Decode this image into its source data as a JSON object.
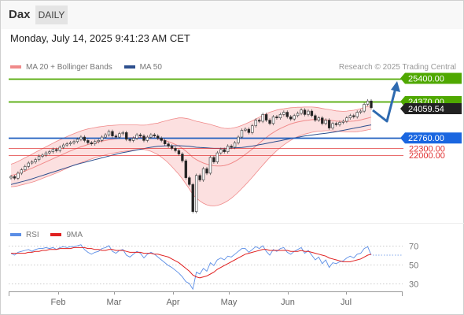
{
  "header": {
    "symbol": "Dax",
    "period_button": "DAILY"
  },
  "datetime": "Monday, July 14, 2025 9:41:23 AM CET",
  "legend": {
    "bollinger_label": "MA 20 + Bollinger Bands",
    "ma50_label": "MA 50",
    "credit": "Research © 2025 Trading Central"
  },
  "rsi_legend": {
    "rsi_label": "RSI",
    "ma_label": "9MA"
  },
  "colors": {
    "resistance": "#4fa800",
    "support": "#1f5fbf",
    "minor_support": "#e03030",
    "bollinger": "#f08a8a",
    "bollinger_fill": "#fbd5d5",
    "ma50": "#2d4f8e",
    "rsi": "#5b8ee6",
    "rsi_ma": "#e02020",
    "arrow": "#2e6ab0"
  },
  "chart_data": [
    {
      "type": "candlestick",
      "x_labels": [
        "Feb",
        "Mar",
        "Apr",
        "May",
        "Jun",
        "Jul"
      ],
      "ylim": [
        19000,
        26500
      ],
      "levels": [
        {
          "label": "25400.00",
          "value": 25400,
          "kind": "resistance"
        },
        {
          "label": "24370.00",
          "value": 24370,
          "kind": "resistance"
        },
        {
          "label": "24059.54",
          "value": 24059.54,
          "kind": "last"
        },
        {
          "label": "22760.00",
          "value": 22760,
          "kind": "pivot"
        },
        {
          "label": "22300.00",
          "value": 22300,
          "kind": "support"
        },
        {
          "label": "22000.00",
          "value": 22000,
          "kind": "support"
        }
      ],
      "close": [
        21050,
        20980,
        21200,
        21350,
        21500,
        21650,
        21700,
        21800,
        21950,
        22000,
        22100,
        22150,
        22250,
        22200,
        22350,
        22450,
        22500,
        22550,
        22600,
        22700,
        22800,
        22650,
        22550,
        22500,
        22600,
        22650,
        22800,
        22900,
        23050,
        22850,
        22800,
        22950,
        23000,
        22700,
        22650,
        22750,
        22900,
        22850,
        22650,
        22800,
        22900,
        22850,
        22750,
        22650,
        22500,
        22400,
        22300,
        22200,
        22050,
        21750,
        21000,
        20700,
        19500,
        21100,
        20900,
        21400,
        21200,
        21900,
        21700,
        22100,
        22250,
        22150,
        22400,
        22350,
        22550,
        22800,
        23100,
        23150,
        23000,
        23300,
        23550,
        23500,
        23800,
        23550,
        23400,
        23700,
        23650,
        23800,
        23900,
        23700,
        23600,
        23750,
        23850,
        24000,
        23800,
        23950,
        23750,
        23550,
        23650,
        23400,
        23550,
        23200,
        23400,
        23350,
        23450,
        23500,
        23650,
        23750,
        23700,
        23900,
        23950,
        24250,
        24400,
        24100
      ],
      "ma20": [
        21100,
        21130,
        21180,
        21240,
        21300,
        21360,
        21420,
        21490,
        21560,
        21630,
        21700,
        21770,
        21840,
        21910,
        21980,
        22050,
        22120,
        22190,
        22250,
        22310,
        22370,
        22420,
        22470,
        22510,
        22550,
        22590,
        22620,
        22650,
        22680,
        22700,
        22720,
        22740,
        22750,
        22760,
        22770,
        22780,
        22790,
        22790,
        22790,
        22780,
        22770,
        22750,
        22720,
        22690,
        22650,
        22600,
        22540,
        22470,
        22400,
        22300,
        22180,
        22050,
        21900,
        21800,
        21720,
        21650,
        21600,
        21560,
        21530,
        21520,
        21520,
        21540,
        21580,
        21640,
        21720,
        21810,
        21920,
        22030,
        22150,
        22270,
        22400,
        22530,
        22660,
        22780,
        22900,
        23000,
        23100,
        23180,
        23250,
        23320,
        23380,
        23430,
        23470,
        23500,
        23530,
        23550,
        23570,
        23580,
        23580,
        23570,
        23560,
        23550,
        23530,
        23510,
        23500,
        23490,
        23490,
        23500,
        23510,
        23530,
        23560,
        23600,
        23640,
        23680
      ],
      "ma50": [
        20700,
        20740,
        20780,
        20820,
        20860,
        20900,
        20950,
        21000,
        21050,
        21100,
        21150,
        21200,
        21250,
        21300,
        21350,
        21400,
        21450,
        21500,
        21550,
        21600,
        21640,
        21680,
        21720,
        21760,
        21800,
        21840,
        21880,
        21920,
        21960,
        22000,
        22040,
        22080,
        22110,
        22140,
        22170,
        22200,
        22230,
        22260,
        22290,
        22320,
        22350,
        22370,
        22390,
        22400,
        22410,
        22420,
        22420,
        22420,
        22420,
        22410,
        22400,
        22390,
        22370,
        22350,
        22340,
        22330,
        22320,
        22310,
        22300,
        22300,
        22300,
        22300,
        22300,
        22310,
        22320,
        22330,
        22340,
        22360,
        22380,
        22400,
        22430,
        22460,
        22490,
        22520,
        22550,
        22580,
        22610,
        22640,
        22670,
        22700,
        22730,
        22760,
        22790,
        22820,
        22850,
        22870,
        22890,
        22910,
        22930,
        22950,
        22970,
        22990,
        23010,
        23040,
        23070,
        23100,
        23130,
        23160,
        23190,
        23220,
        23250,
        23280,
        23310,
        23340
      ],
      "bb_width": [
        500,
        520,
        540,
        560,
        580,
        600,
        620,
        640,
        650,
        660,
        670,
        680,
        690,
        700,
        700,
        700,
        700,
        700,
        700,
        700,
        700,
        700,
        690,
        680,
        670,
        660,
        650,
        640,
        630,
        620,
        610,
        600,
        590,
        580,
        570,
        560,
        550,
        540,
        540,
        560,
        600,
        650,
        700,
        780,
        860,
        950,
        1050,
        1150,
        1250,
        1350,
        1450,
        1550,
        1650,
        1700,
        1750,
        1780,
        1800,
        1800,
        1780,
        1750,
        1700,
        1650,
        1600,
        1550,
        1500,
        1450,
        1400,
        1350,
        1300,
        1250,
        1200,
        1150,
        1100,
        1050,
        1000,
        950,
        900,
        850,
        800,
        760,
        720,
        680,
        650,
        620,
        600,
        580,
        560,
        540,
        520,
        500,
        480,
        470,
        460,
        450,
        450,
        450,
        460,
        470,
        480,
        490,
        500,
        510,
        520,
        530
      ]
    },
    {
      "type": "line",
      "name": "RSI panel",
      "y_ticks": [
        30,
        50,
        70
      ],
      "ylim": [
        20,
        80
      ],
      "rsi": [
        62,
        60,
        63,
        64,
        65,
        66,
        64,
        66,
        67,
        67,
        68,
        67,
        68,
        66,
        68,
        69,
        68,
        69,
        69,
        70,
        71,
        66,
        63,
        61,
        63,
        64,
        67,
        68,
        70,
        64,
        62,
        65,
        66,
        60,
        58,
        61,
        64,
        62,
        57,
        61,
        63,
        61,
        58,
        55,
        52,
        49,
        47,
        44,
        41,
        37,
        32,
        30,
        24,
        42,
        40,
        46,
        43,
        52,
        49,
        55,
        57,
        55,
        59,
        58,
        61,
        64,
        67,
        67,
        63,
        66,
        69,
        67,
        70,
        64,
        60,
        66,
        64,
        67,
        68,
        63,
        61,
        64,
        66,
        68,
        62,
        65,
        60,
        55,
        58,
        51,
        55,
        47,
        52,
        51,
        53,
        54,
        57,
        59,
        57,
        61,
        62,
        67,
        69,
        60
      ],
      "rsi_ma": [
        62,
        62,
        62,
        62,
        62,
        63,
        63,
        64,
        64,
        65,
        65,
        66,
        66,
        66,
        67,
        67,
        67,
        67,
        68,
        68,
        68,
        68,
        67,
        67,
        66,
        66,
        65,
        65,
        66,
        66,
        65,
        65,
        65,
        64,
        63,
        63,
        63,
        63,
        62,
        62,
        62,
        61,
        61,
        60,
        59,
        58,
        56,
        54,
        52,
        49,
        46,
        43,
        39,
        37,
        36,
        37,
        38,
        40,
        42,
        45,
        47,
        49,
        51,
        53,
        55,
        57,
        59,
        61,
        62,
        63,
        64,
        65,
        66,
        66,
        65,
        65,
        65,
        65,
        65,
        65,
        64,
        64,
        64,
        65,
        64,
        64,
        63,
        62,
        61,
        60,
        59,
        57,
        56,
        55,
        54,
        53,
        53,
        53,
        54,
        55,
        56,
        58,
        60,
        61
      ]
    }
  ]
}
